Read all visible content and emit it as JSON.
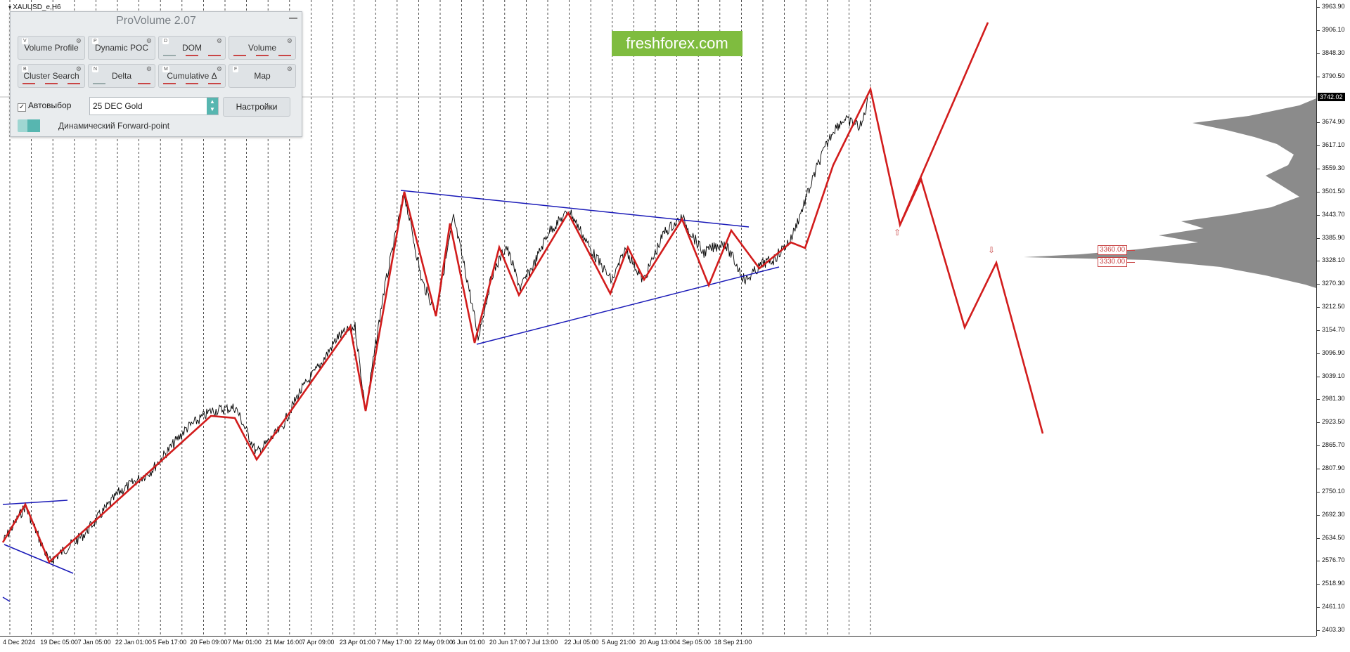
{
  "chart": {
    "symbol": "XAUUSD_e,H6",
    "current_price": "3742.02",
    "brand_logo_text": "freshforex.com"
  },
  "price_axis": [
    "3963.90",
    "3906.10",
    "3848.30",
    "3790.50",
    "3674.90",
    "3617.10",
    "3559.30",
    "3501.50",
    "3443.70",
    "3385.90",
    "3328.10",
    "3270.30",
    "3212.50",
    "3154.70",
    "3096.90",
    "3039.10",
    "2981.30",
    "2923.50",
    "2865.70",
    "2807.90",
    "2750.10",
    "2692.30",
    "2634.50",
    "2576.70",
    "2518.90",
    "2461.10",
    "2403.30"
  ],
  "time_axis": [
    "4 Dec 2024",
    "19 Dec 05:00",
    "7 Jan 05:00",
    "22 Jan 01:00",
    "5 Feb 17:00",
    "20 Feb 09:00",
    "7 Mar 01:00",
    "21 Mar 16:00",
    "7 Apr 09:00",
    "23 Apr 01:00",
    "7 May 17:00",
    "22 May 09:00",
    "6 Jun 01:00",
    "20 Jun 17:00",
    "7 Jul 13:00",
    "22 Jul 05:00",
    "5 Aug 21:00",
    "20 Aug 13:00",
    "4 Sep 05:00",
    "18 Sep 21:00"
  ],
  "level_labels": [
    "3360.00",
    "3330.00"
  ],
  "panel": {
    "title": "ProVolume 2.07",
    "buttons": [
      {
        "key": "V",
        "label": "Volume Profile",
        "active": true
      },
      {
        "key": "P",
        "label": "Dynamic POC",
        "active": true
      },
      {
        "key": "D",
        "label": "DOM",
        "active": false
      },
      {
        "key": "",
        "label": "Volume",
        "active": false
      },
      {
        "key": "B",
        "label": "Cluster Search",
        "active": false
      },
      {
        "key": "N",
        "label": "Delta",
        "active": false
      },
      {
        "key": "M",
        "label": "Cumulative Δ",
        "active": false
      },
      {
        "key": "F",
        "label": "Map",
        "active": false
      }
    ],
    "autoselect_label": "Автовыбор",
    "contract_value": "25 DEC Gold",
    "settings_label": "Настройки",
    "forward_point_label": "Динамический Forward-point"
  },
  "colors": {
    "accent": "#57b6b0",
    "zigzag": "#d21c1c",
    "trendline": "#1a1ab8",
    "brand": "#7fbc3f"
  }
}
